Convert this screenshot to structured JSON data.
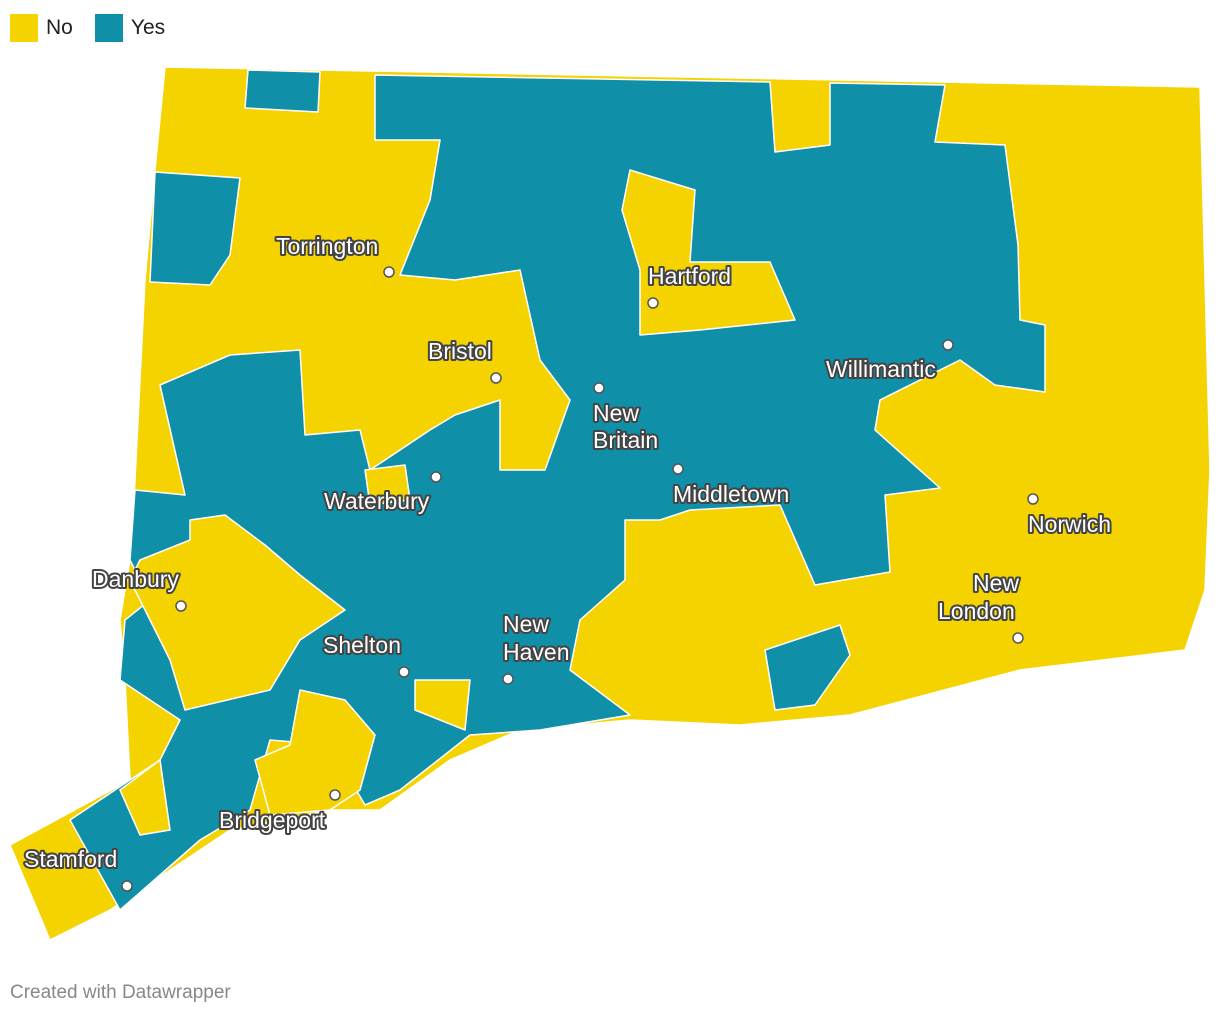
{
  "legend": [
    {
      "label": "No",
      "color": "#f5d300"
    },
    {
      "label": "Yes",
      "color": "#0f8fa8"
    }
  ],
  "cities": [
    {
      "lines": [
        "Torrington"
      ]
    },
    {
      "lines": [
        "Hartford"
      ]
    },
    {
      "lines": [
        "Bristol"
      ]
    },
    {
      "lines": [
        "New",
        "Britain"
      ]
    },
    {
      "lines": [
        "Willimantic"
      ]
    },
    {
      "lines": [
        "Waterbury"
      ]
    },
    {
      "lines": [
        "Middletown"
      ]
    },
    {
      "lines": [
        "Norwich"
      ]
    },
    {
      "lines": [
        "Danbury"
      ]
    },
    {
      "lines": [
        "New",
        "London"
      ]
    },
    {
      "lines": [
        "Shelton"
      ]
    },
    {
      "lines": [
        "New",
        "Haven"
      ]
    },
    {
      "lines": [
        "Bridgeport"
      ]
    },
    {
      "lines": [
        "Stamford"
      ]
    }
  ],
  "footer": "Created with Datawrapper"
}
